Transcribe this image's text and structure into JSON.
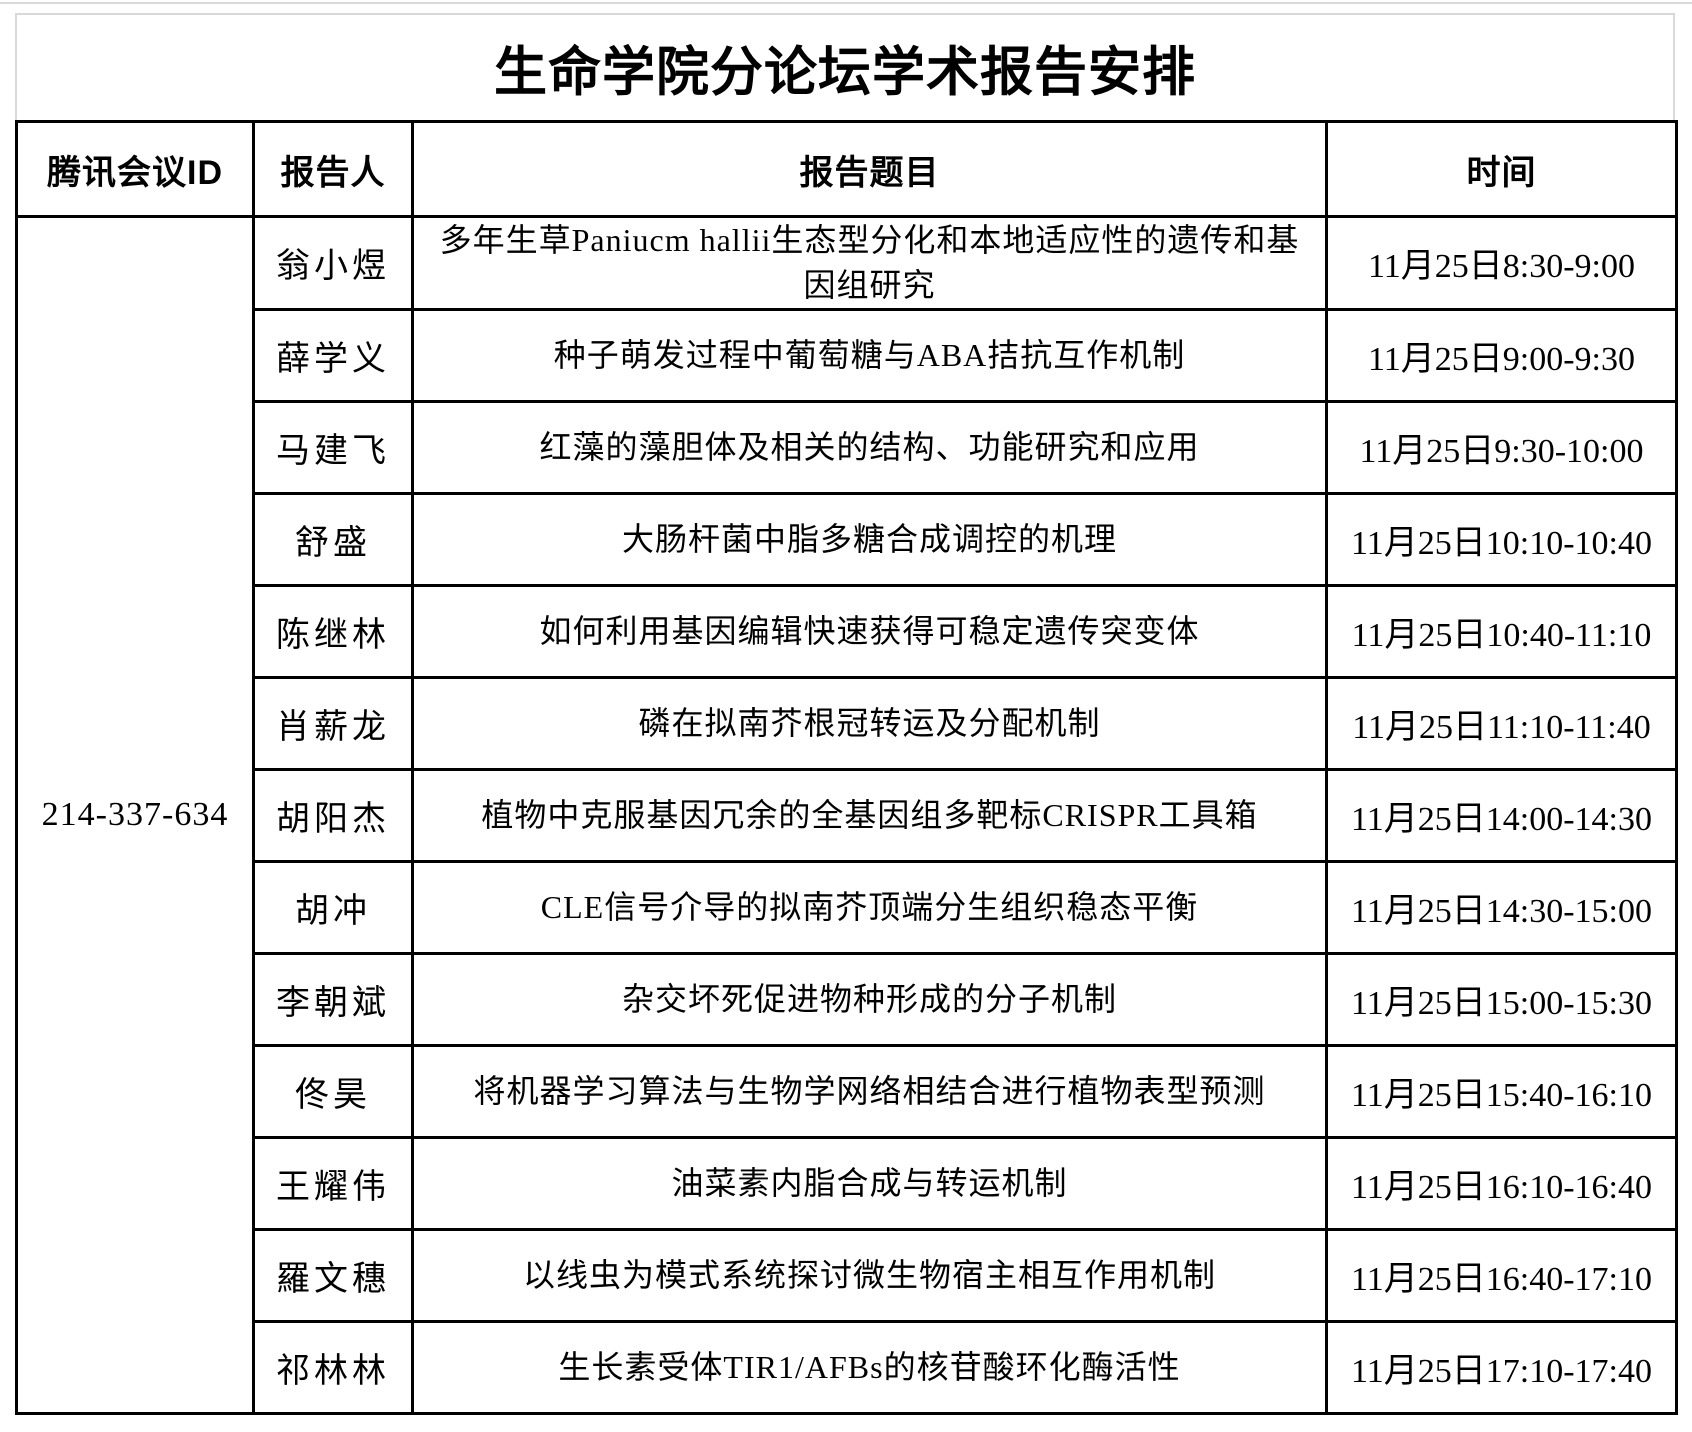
{
  "page": {
    "title": "生命学院分论坛学术报告安排"
  },
  "colors": {
    "table_border": "#000000",
    "title_box_border": "#d9d9d9",
    "text": "#000000",
    "background": "#ffffff"
  },
  "table": {
    "columns": [
      "腾讯会议ID",
      "报告人",
      "报告题目",
      "时间"
    ],
    "meeting_id": "214-337-634",
    "rows": [
      {
        "speaker": "翁小煜",
        "topic": "多年生草Paniucm hallii生态型分化和本地适应性的遗传和基因组研究",
        "time": "11月25日8:30-9:00"
      },
      {
        "speaker": "薛学义",
        "topic": "种子萌发过程中葡萄糖与ABA拮抗互作机制",
        "time": "11月25日9:00-9:30"
      },
      {
        "speaker": "马建飞",
        "topic": "红藻的藻胆体及相关的结构、功能研究和应用",
        "time": "11月25日9:30-10:00"
      },
      {
        "speaker": "舒盛",
        "topic": "大肠杆菌中脂多糖合成调控的机理",
        "time": "11月25日10:10-10:40"
      },
      {
        "speaker": "陈继林",
        "topic": "如何利用基因编辑快速获得可稳定遗传突变体",
        "time": "11月25日10:40-11:10"
      },
      {
        "speaker": "肖薪龙",
        "topic": "磷在拟南芥根冠转运及分配机制",
        "time": "11月25日11:10-11:40"
      },
      {
        "speaker": "胡阳杰",
        "topic": "植物中克服基因冗余的全基因组多靶标CRISPR工具箱",
        "time": "11月25日14:00-14:30"
      },
      {
        "speaker": "胡冲",
        "topic": "CLE信号介导的拟南芥顶端分生组织稳态平衡",
        "time": "11月25日14:30-15:00"
      },
      {
        "speaker": "李朝斌",
        "topic": "杂交坏死促进物种形成的分子机制",
        "time": "11月25日15:00-15:30"
      },
      {
        "speaker": "佟昊",
        "topic": "将机器学习算法与生物学网络相结合进行植物表型预测",
        "time": "11月25日15:40-16:10"
      },
      {
        "speaker": "王耀伟",
        "topic": "油菜素内脂合成与转运机制",
        "time": "11月25日16:10-16:40"
      },
      {
        "speaker": "羅文穗",
        "topic": "以线虫为模式系统探讨微生物宿主相互作用机制",
        "time": "11月25日16:40-17:10"
      },
      {
        "speaker": "祁林林",
        "topic": "生长素受体TIR1/AFBs的核苷酸环化酶活性",
        "time": "11月25日17:10-17:40"
      }
    ]
  }
}
